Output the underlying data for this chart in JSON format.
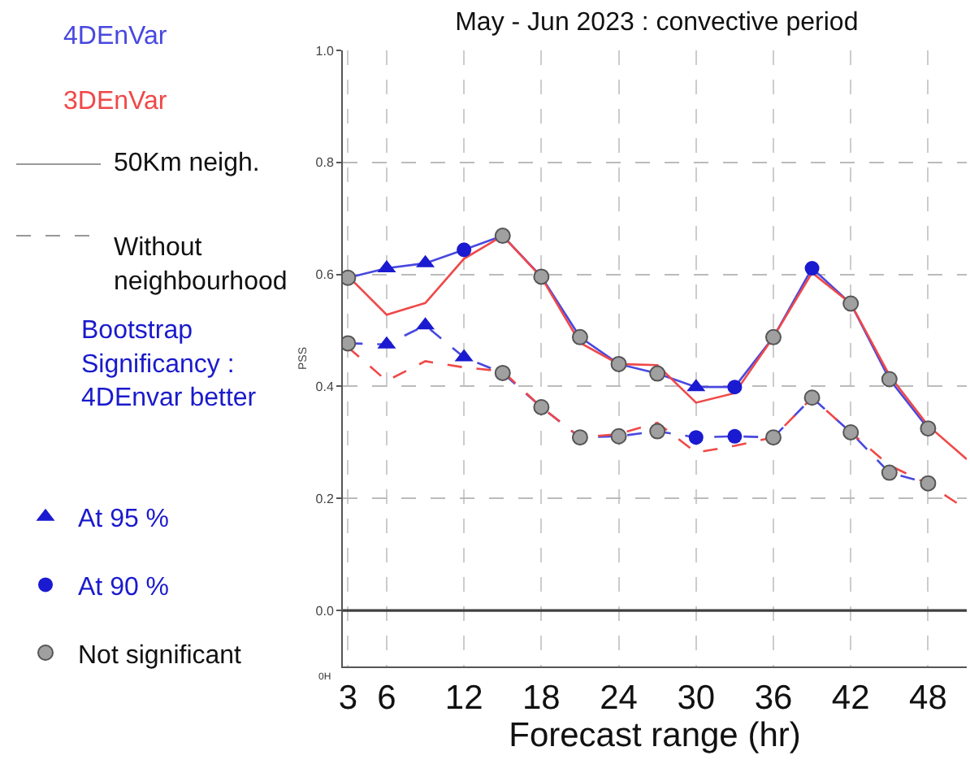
{
  "chart_data": {
    "type": "line",
    "title": "May - Jun 2023 : convective period",
    "xlabel": "Forecast range (hr)",
    "ylabel": "PSS",
    "x": [
      3,
      6,
      9,
      12,
      15,
      18,
      21,
      24,
      27,
      30,
      33,
      36,
      39,
      42,
      45,
      48
    ],
    "series": [
      {
        "name": "4DEnVar",
        "color": "#4848e0",
        "line_style": "solid",
        "values": [
          0.594,
          0.611,
          0.62,
          0.644,
          0.669,
          0.596,
          0.488,
          0.44,
          0.423,
          0.399,
          0.399,
          0.488,
          0.611,
          0.548,
          0.413,
          0.325
        ]
      },
      {
        "name": "3DEnVar",
        "color": "#f04848",
        "line_style": "solid",
        "x": [
          3,
          6,
          9,
          12,
          15,
          18,
          21,
          24,
          27,
          30,
          33,
          36,
          39,
          42,
          45,
          48,
          51
        ],
        "values": [
          0.597,
          0.528,
          0.549,
          0.628,
          0.669,
          0.595,
          0.478,
          0.44,
          0.438,
          0.371,
          0.388,
          0.488,
          0.603,
          0.548,
          0.42,
          0.33,
          0.27
        ]
      },
      {
        "color": "#4848e0",
        "line_style": "dashed",
        "values": [
          0.477,
          0.475,
          0.509,
          0.452,
          0.424,
          0.363,
          0.309,
          0.311,
          0.32,
          0.309,
          0.311,
          0.309,
          0.38,
          0.318,
          0.246,
          0.227
        ]
      },
      {
        "color": "#f04848",
        "line_style": "dashed",
        "x": [
          3,
          6,
          9,
          12,
          15,
          18,
          21,
          24,
          27,
          30,
          33,
          36,
          39,
          42,
          45,
          48,
          51
        ],
        "values": [
          0.47,
          0.41,
          0.445,
          0.434,
          0.427,
          0.363,
          0.309,
          0.315,
          0.335,
          0.282,
          0.294,
          0.309,
          0.38,
          0.318,
          0.259,
          0.226,
          0.18
        ]
      },
      {
        "type": "scatter",
        "name": "At 95 %",
        "marker": "triangle",
        "color": "#1a1ad0",
        "x": [
          6,
          9,
          30,
          6,
          9,
          12
        ],
        "values": [
          0.611,
          0.62,
          0.399,
          0.475,
          0.509,
          0.452
        ]
      },
      {
        "type": "scatter",
        "name": "At 90 %",
        "marker": "circle",
        "color": "#1a1ad0",
        "x": [
          12,
          33,
          39,
          30,
          33
        ],
        "values": [
          0.644,
          0.399,
          0.611,
          0.309,
          0.311
        ]
      },
      {
        "type": "scatter",
        "name": "Not significant",
        "marker": "circle",
        "color": "#a0a0a0",
        "x": [
          3,
          15,
          18,
          21,
          24,
          27,
          36,
          42,
          45,
          48,
          3,
          15,
          18,
          21,
          24,
          27,
          36,
          39,
          42,
          45,
          48
        ],
        "values": [
          0.594,
          0.669,
          0.596,
          0.488,
          0.44,
          0.423,
          0.488,
          0.548,
          0.413,
          0.325,
          0.477,
          0.424,
          0.363,
          0.309,
          0.311,
          0.32,
          0.309,
          0.38,
          0.318,
          0.246,
          0.227
        ]
      }
    ],
    "xlim": [
      2.6,
      51
    ],
    "xticks": [
      3,
      6,
      12,
      18,
      24,
      30,
      36,
      42,
      48
    ],
    "ylim": [
      -0.1,
      1.0
    ],
    "yticks": [
      {
        "value": 0,
        "label": "0.0"
      },
      {
        "value": 0.2,
        "label": "0.2"
      },
      {
        "value": 0.4,
        "label": "0.4"
      },
      {
        "value": 0.6,
        "label": "0.6"
      },
      {
        "value": 0.8,
        "label": "0.8"
      },
      {
        "value": 1.0,
        "label": "1.0"
      }
    ],
    "grid": true,
    "legend": "left",
    "ref_lines": [
      {
        "axis": "y",
        "value": 0,
        "color": "#404040"
      }
    ],
    "annotations": [
      "50Km neigh.",
      "Without\nneighbourhood",
      "Bootstrap\nSignificancy :\n4DEnvar better",
      "0H"
    ]
  }
}
